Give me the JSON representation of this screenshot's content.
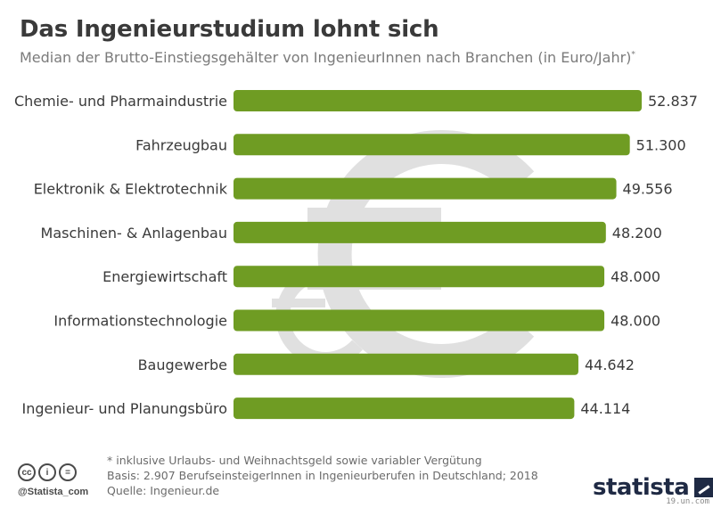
{
  "header": {
    "title": "Das Ingenieurstudium lohnt sich",
    "subtitle": "Median der Brutto-Einstiegsgehälter von IngenieurInnen nach Branchen (in Euro/Jahr)",
    "subtitle_mark": "*"
  },
  "chart_data": {
    "type": "bar",
    "orientation": "horizontal",
    "categories": [
      "Chemie- und Pharmaindustrie",
      "Fahrzeugbau",
      "Elektronik & Elektrotechnik",
      "Maschinen- & Anlagenbau",
      "Energiewirtschaft",
      "Informationstechnologie",
      "Baugewerbe",
      "Ingenieur- und Planungsbüro"
    ],
    "values": [
      52837,
      51300,
      49556,
      48200,
      48000,
      48000,
      44642,
      44114
    ],
    "value_labels": [
      "52.837",
      "51.300",
      "49.556",
      "48.200",
      "48.000",
      "48.000",
      "44.642",
      "44.114"
    ],
    "xlim": [
      0,
      52837
    ],
    "bar_color": "#6f9c23",
    "watermark_color": "#e0e0e0"
  },
  "footer": {
    "note": "* inklusive Urlaubs- und Weihnachtsgeld sowie variabler Vergütung",
    "basis": "Basis: 2.907 BerufseinsteigerInnen in Ingenieurberufen in Deutschland; 2018",
    "source": "Quelle: Ingenieur.de",
    "handle": "@Statista_com",
    "brand": "statista",
    "cc_icons": [
      "cc",
      "i",
      "="
    ],
    "url": "19.un.com"
  }
}
